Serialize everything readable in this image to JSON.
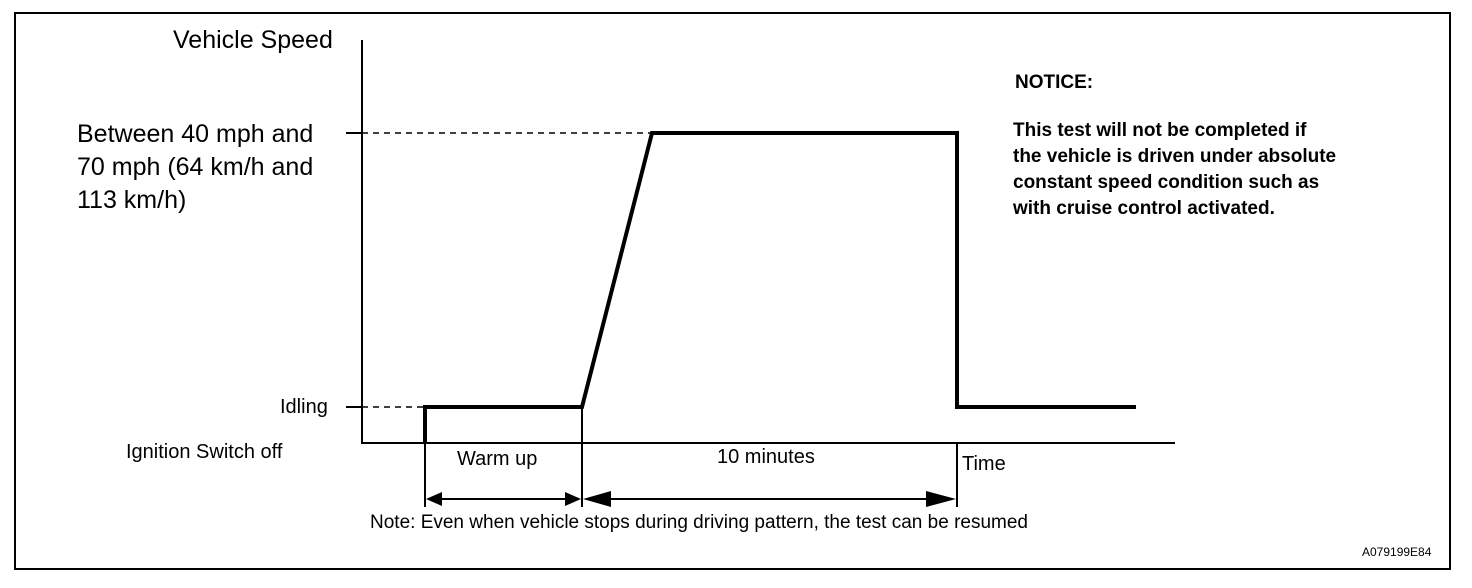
{
  "diagram": {
    "y_axis_title": "Vehicle Speed",
    "speed_label_lines": [
      "Between 40 mph and",
      "70 mph (64 km/h and",
      "113 km/h)"
    ],
    "idling_label": "Idling",
    "ignition_label": "Ignition Switch off",
    "time_label": "Time",
    "warm_up_label": "Warm up",
    "ten_minutes_label": "10 minutes",
    "note": "Note: Even when vehicle stops during driving pattern, the test can be resumed",
    "notice_title": "NOTICE:",
    "notice_lines": [
      "This test will not be completed if",
      "the vehicle is driven under absolute",
      "constant speed condition such as",
      "with cruise control activated."
    ],
    "figure_code": "A079199E84"
  }
}
